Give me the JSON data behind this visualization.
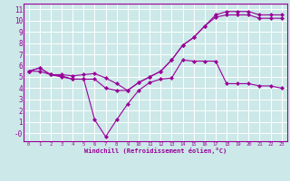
{
  "xlabel": "Windchill (Refroidissement éolien,°C)",
  "background_color": "#cce8e8",
  "grid_color": "#ffffff",
  "line_color": "#990099",
  "xlim": [
    -0.5,
    23.5
  ],
  "ylim": [
    -0.7,
    11.5
  ],
  "xticks": [
    0,
    1,
    2,
    3,
    4,
    5,
    6,
    7,
    8,
    9,
    10,
    11,
    12,
    13,
    14,
    15,
    16,
    17,
    18,
    19,
    20,
    21,
    22,
    23
  ],
  "yticks": [
    0,
    1,
    2,
    3,
    4,
    5,
    6,
    7,
    8,
    9,
    10,
    11
  ],
  "series": [
    {
      "x": [
        0,
        1,
        2,
        3,
        4,
        5,
        6,
        7,
        8,
        9,
        10,
        11,
        12,
        13,
        14,
        15,
        16,
        17,
        18,
        19,
        20,
        21,
        22,
        23
      ],
      "y": [
        5.5,
        5.8,
        5.2,
        5.2,
        5.1,
        5.2,
        5.3,
        4.9,
        4.4,
        3.8,
        4.5,
        5.0,
        5.5,
        6.5,
        7.8,
        8.5,
        9.5,
        10.5,
        10.8,
        10.8,
        10.8,
        10.5,
        10.5,
        10.5
      ]
    },
    {
      "x": [
        0,
        1,
        2,
        3,
        4,
        5,
        6,
        7,
        8,
        9,
        10,
        11,
        12,
        13,
        14,
        15,
        16,
        17,
        18,
        19,
        20,
        21,
        22,
        23
      ],
      "y": [
        5.5,
        5.8,
        5.2,
        5.0,
        4.8,
        4.8,
        4.8,
        4.0,
        3.8,
        3.8,
        4.5,
        5.0,
        5.5,
        6.5,
        7.8,
        8.5,
        9.5,
        10.3,
        10.5,
        10.5,
        10.5,
        10.2,
        10.2,
        10.2
      ]
    },
    {
      "x": [
        0,
        1,
        2,
        3,
        4,
        5,
        6,
        7,
        8,
        9,
        10,
        11,
        12,
        13,
        14,
        15,
        16,
        17,
        18,
        19,
        20,
        21,
        22,
        23
      ],
      "y": [
        5.5,
        5.5,
        5.2,
        5.1,
        4.8,
        4.8,
        1.2,
        -0.3,
        1.2,
        2.6,
        3.8,
        4.5,
        4.8,
        4.9,
        6.5,
        6.4,
        6.4,
        6.4,
        4.4,
        4.4,
        4.4,
        4.2,
        4.2,
        4.0
      ]
    }
  ]
}
